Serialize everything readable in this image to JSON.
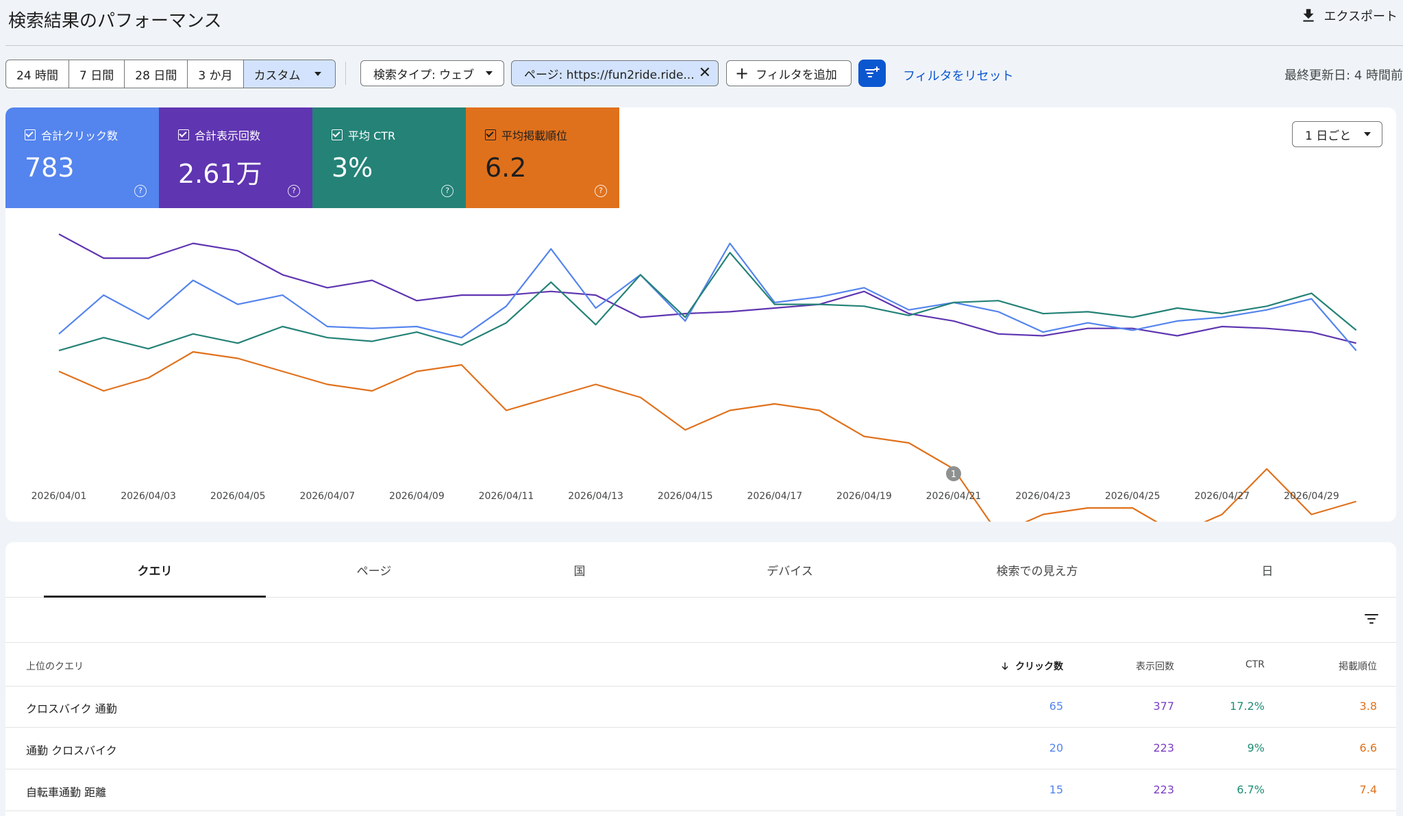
{
  "header": {
    "title": "検索結果のパフォーマンス",
    "export_label": "エクスポート"
  },
  "toolbar": {
    "date_ranges": [
      "24 時間",
      "7 日間",
      "28 日間",
      "3 か月",
      "カスタム"
    ],
    "search_type": "検索タイプ: ウェブ",
    "page_filter": "ページ: https://fun2ride.ride...",
    "add_filter": "フィルタを追加",
    "reset_filters": "フィルタをリセット",
    "last_updated": "最終更新日: 4 時間前"
  },
  "metrics": {
    "clicks": {
      "label": "合計クリック数",
      "value": "783",
      "color": "#5484ed"
    },
    "impressions": {
      "label": "合計表示回数",
      "value": "2.61万",
      "color": "#5f35b1"
    },
    "ctr": {
      "label": "平均 CTR",
      "value": "3%",
      "color": "#248277"
    },
    "position": {
      "label": "平均掲載順位",
      "value": "6.2",
      "color": "#e0711c"
    }
  },
  "granularity": "1 日ごと",
  "chart_data": {
    "type": "line",
    "x": [
      "2026/04/01",
      "2026/04/02",
      "2026/04/03",
      "2026/04/04",
      "2026/04/05",
      "2026/04/06",
      "2026/04/07",
      "2026/04/08",
      "2026/04/09",
      "2026/04/10",
      "2026/04/11",
      "2026/04/12",
      "2026/04/13",
      "2026/04/14",
      "2026/04/15",
      "2026/04/16",
      "2026/04/17",
      "2026/04/18",
      "2026/04/19",
      "2026/04/20",
      "2026/04/21",
      "2026/04/22",
      "2026/04/23",
      "2026/04/24",
      "2026/04/25",
      "2026/04/26",
      "2026/04/27",
      "2026/04/28",
      "2026/04/29",
      "2026/04/30"
    ],
    "x_tick_labels": [
      "2026/04/01",
      "2026/04/03",
      "2026/04/05",
      "2026/04/07",
      "2026/04/09",
      "2026/04/11",
      "2026/04/13",
      "2026/04/15",
      "2026/04/17",
      "2026/04/19",
      "2026/04/21",
      "2026/04/23",
      "2026/04/25",
      "2026/04/27",
      "2026/04/29"
    ],
    "annotation": {
      "x": "2026/04/21",
      "label": "1"
    },
    "series": [
      {
        "metric": "impressions",
        "color": "#5f35b1",
        "values": [
          1.0,
          0.87,
          0.87,
          0.95,
          0.91,
          0.78,
          0.71,
          0.75,
          0.64,
          0.67,
          0.67,
          0.69,
          0.67,
          0.55,
          0.57,
          0.58,
          0.6,
          0.62,
          0.69,
          0.57,
          0.53,
          0.46,
          0.45,
          0.49,
          0.49,
          0.45,
          0.5,
          0.49,
          0.47,
          0.41
        ]
      },
      {
        "metric": "clicks",
        "color": "#5484ed",
        "values": [
          0.46,
          0.67,
          0.54,
          0.75,
          0.62,
          0.67,
          0.5,
          0.49,
          0.5,
          0.44,
          0.61,
          0.92,
          0.6,
          0.78,
          0.53,
          0.95,
          0.63,
          0.66,
          0.71,
          0.59,
          0.63,
          0.58,
          0.47,
          0.52,
          0.48,
          0.53,
          0.55,
          0.59,
          0.65,
          0.37
        ]
      },
      {
        "metric": "ctr",
        "color": "#248277",
        "values": [
          0.37,
          0.44,
          0.38,
          0.46,
          0.41,
          0.5,
          0.44,
          0.42,
          0.47,
          0.4,
          0.52,
          0.74,
          0.51,
          0.78,
          0.55,
          0.9,
          0.62,
          0.62,
          0.61,
          0.56,
          0.63,
          0.64,
          0.57,
          0.58,
          0.55,
          0.6,
          0.57,
          0.61,
          0.68,
          0.48
        ]
      },
      {
        "metric": "position",
        "color": "#e0711c",
        "values": [
          4.9,
          5.2,
          5.0,
          4.6,
          4.7,
          4.9,
          5.1,
          5.2,
          4.9,
          4.8,
          5.5,
          5.3,
          5.1,
          5.3,
          5.8,
          5.5,
          5.4,
          5.5,
          5.9,
          6.0,
          6.4,
          7.4,
          7.1,
          7.0,
          7.0,
          7.4,
          7.1,
          6.4,
          7.1,
          6.9
        ]
      }
    ]
  },
  "tabs": [
    "クエリ",
    "ページ",
    "国",
    "デバイス",
    "検索での見え方",
    "日"
  ],
  "table": {
    "headers": {
      "query": "上位のクエリ",
      "clicks": "クリック数",
      "impressions": "表示回数",
      "ctr": "CTR",
      "position": "掲載順位"
    },
    "rows": [
      {
        "query": "クロスバイク 通勤",
        "clicks": "65",
        "impressions": "377",
        "ctr": "17.2%",
        "position": "3.8"
      },
      {
        "query": "通勤 クロスバイク",
        "clicks": "20",
        "impressions": "223",
        "ctr": "9%",
        "position": "6.6"
      },
      {
        "query": "自転車通勤 距離",
        "clicks": "15",
        "impressions": "223",
        "ctr": "6.7%",
        "position": "7.4"
      }
    ]
  }
}
